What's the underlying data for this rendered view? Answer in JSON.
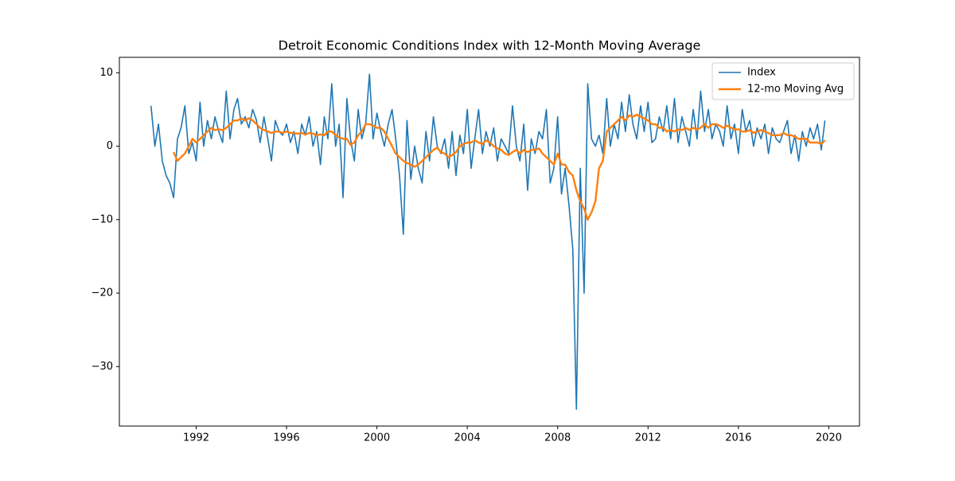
{
  "chart_data": {
    "type": "line",
    "title": "Detroit Economic Conditions Index with 12-Month Moving Average",
    "x": [
      1990,
      1990.17,
      1990.33,
      1990.5,
      1990.67,
      1990.83,
      1991,
      1991.17,
      1991.33,
      1991.5,
      1991.67,
      1991.83,
      1992,
      1992.17,
      1992.33,
      1992.5,
      1992.67,
      1992.83,
      1993,
      1993.17,
      1993.33,
      1993.5,
      1993.67,
      1993.83,
      1994,
      1994.17,
      1994.33,
      1994.5,
      1994.67,
      1994.83,
      1995,
      1995.17,
      1995.33,
      1995.5,
      1995.67,
      1995.83,
      1996,
      1996.17,
      1996.33,
      1996.5,
      1996.67,
      1996.83,
      1997,
      1997.17,
      1997.33,
      1997.5,
      1997.67,
      1997.83,
      1998,
      1998.17,
      1998.33,
      1998.5,
      1998.67,
      1998.83,
      1999,
      1999.17,
      1999.33,
      1999.5,
      1999.67,
      1999.83,
      2000,
      2000.17,
      2000.33,
      2000.5,
      2000.67,
      2000.83,
      2001,
      2001.17,
      2001.33,
      2001.5,
      2001.67,
      2001.83,
      2002,
      2002.17,
      2002.33,
      2002.5,
      2002.67,
      2002.83,
      2003,
      2003.17,
      2003.33,
      2003.5,
      2003.67,
      2003.83,
      2004,
      2004.17,
      2004.33,
      2004.5,
      2004.67,
      2004.83,
      2005,
      2005.17,
      2005.33,
      2005.5,
      2005.67,
      2005.83,
      2006,
      2006.17,
      2006.33,
      2006.5,
      2006.67,
      2006.83,
      2007,
      2007.17,
      2007.33,
      2007.5,
      2007.67,
      2007.83,
      2008,
      2008.17,
      2008.33,
      2008.5,
      2008.67,
      2008.83,
      2009,
      2009.17,
      2009.33,
      2009.5,
      2009.67,
      2009.83,
      2010,
      2010.17,
      2010.33,
      2010.5,
      2010.67,
      2010.83,
      2011,
      2011.17,
      2011.33,
      2011.5,
      2011.67,
      2011.83,
      2012,
      2012.17,
      2012.33,
      2012.5,
      2012.67,
      2012.83,
      2013,
      2013.17,
      2013.33,
      2013.5,
      2013.67,
      2013.83,
      2014,
      2014.17,
      2014.33,
      2014.5,
      2014.67,
      2014.83,
      2015,
      2015.17,
      2015.33,
      2015.5,
      2015.67,
      2015.83,
      2016,
      2016.17,
      2016.33,
      2016.5,
      2016.67,
      2016.83,
      2017,
      2017.17,
      2017.33,
      2017.5,
      2017.67,
      2017.83,
      2018,
      2018.17,
      2018.33,
      2018.5,
      2018.67,
      2018.83,
      2019,
      2019.17,
      2019.33,
      2019.5,
      2019.67,
      2019.83
    ],
    "series": [
      {
        "name": "Index",
        "color": "#1f77b4",
        "values": [
          5.5,
          0,
          3,
          -2,
          -4,
          -5,
          -7,
          1,
          2.5,
          5.5,
          -1,
          0.5,
          -2,
          6,
          0,
          3.5,
          1,
          4,
          2,
          0.5,
          7.5,
          1,
          5,
          6.5,
          3,
          4,
          2.5,
          5,
          3.5,
          0.5,
          4,
          1,
          -2,
          3.5,
          2,
          1.5,
          3,
          0.5,
          2,
          -1,
          3,
          1.5,
          4,
          0,
          2,
          -2.5,
          4,
          1,
          8.5,
          0,
          3,
          -7,
          6.5,
          1,
          -2,
          5,
          1,
          3,
          9.8,
          1,
          4.5,
          2,
          0,
          3,
          5,
          1,
          -4,
          -12,
          3.5,
          -4.5,
          0,
          -3,
          -5,
          2,
          -2,
          4,
          0,
          -1,
          1,
          -3,
          2,
          -4,
          1.5,
          -1,
          5,
          -3,
          1,
          5,
          -1,
          2,
          0,
          2.5,
          -2,
          1,
          0,
          -1,
          5.5,
          0,
          -2,
          3,
          -6,
          1,
          -1,
          2,
          1,
          5,
          -5,
          -3,
          4,
          -6.5,
          -3,
          -8,
          -14,
          -35.8,
          -3,
          -20,
          8.5,
          1,
          0,
          1.5,
          -1,
          6.5,
          0,
          3,
          1,
          6,
          2,
          7,
          3,
          1,
          5.5,
          2,
          6,
          0.5,
          1,
          4,
          2,
          5.5,
          1,
          6.5,
          0.5,
          4,
          2,
          0,
          5,
          1,
          7.5,
          2,
          5,
          1,
          3,
          2,
          0,
          5.5,
          1,
          3,
          -1,
          5,
          2,
          3.5,
          0,
          2.5,
          1,
          3,
          -1,
          2.5,
          1,
          0.5,
          2,
          3.5,
          -1,
          1.5,
          -2,
          2,
          0,
          2.5,
          1,
          3,
          -0.5,
          3.5
        ]
      },
      {
        "name": "12-mo Moving Avg",
        "color": "#ff7f0e",
        "values": [
          null,
          null,
          null,
          null,
          null,
          null,
          -0.8,
          -2,
          -1.5,
          -1,
          0,
          1,
          0.5,
          1,
          1.5,
          2,
          2.5,
          2.2,
          2.3,
          2.2,
          2.5,
          3,
          3.5,
          3.5,
          3.8,
          3.5,
          3.8,
          3.5,
          3,
          2.5,
          2.2,
          2,
          1.8,
          2,
          2,
          1.8,
          2,
          1.8,
          1.8,
          1.7,
          1.8,
          1.6,
          1.8,
          1.7,
          1.5,
          1.6,
          1.5,
          2,
          2,
          1.5,
          1.2,
          1,
          1,
          0.2,
          0.5,
          1.5,
          2,
          3,
          3,
          2.8,
          2.5,
          2.5,
          2,
          1,
          0,
          -1,
          -1.5,
          -2,
          -2.3,
          -2.5,
          -2.8,
          -2.5,
          -2,
          -1.5,
          -1,
          -0.5,
          -0.2,
          -0.8,
          -1,
          -1.5,
          -1.2,
          -0.8,
          0,
          0.3,
          0.5,
          0.5,
          0.8,
          0.5,
          0.3,
          0.8,
          0.5,
          0,
          -0.3,
          -0.5,
          -1,
          -1.2,
          -0.8,
          -0.5,
          -1,
          -0.5,
          -0.8,
          -0.5,
          -0.5,
          -0.3,
          -1,
          -1.5,
          -2,
          -2.5,
          -1,
          -2.5,
          -2.5,
          -3.5,
          -4,
          -6,
          -7.5,
          -8.5,
          -10,
          -9,
          -7.5,
          -3,
          -2,
          2,
          2.5,
          3,
          3.5,
          4,
          3.5,
          4.2,
          4,
          4.3,
          4,
          3.8,
          3.5,
          3,
          3,
          2.5,
          2.5,
          2,
          2.2,
          2,
          2.3,
          2.2,
          2.5,
          2.2,
          2.5,
          2.3,
          2.5,
          3,
          2.5,
          3,
          3,
          2.8,
          2.5,
          2.8,
          2.5,
          2.3,
          2.3,
          2,
          2,
          2.2,
          1.8,
          2,
          2.2,
          2,
          1.8,
          1.5,
          1.5,
          1.5,
          1.8,
          1.5,
          1.5,
          1.3,
          1,
          1,
          1,
          0.5,
          0.5,
          0.5,
          0.3,
          0.8
        ]
      }
    ],
    "xlim": [
      1988.6,
      2021.36
    ],
    "xticks": [
      1992,
      1996,
      2000,
      2004,
      2008,
      2012,
      2016,
      2020
    ],
    "ylim": [
      -38.1,
      12.1
    ],
    "yticks": [
      {
        "value": -30,
        "label": "−30"
      },
      {
        "value": -20,
        "label": "−20"
      },
      {
        "value": -10,
        "label": "−10"
      },
      0,
      10
    ],
    "grid": false,
    "legend": "upper right"
  }
}
